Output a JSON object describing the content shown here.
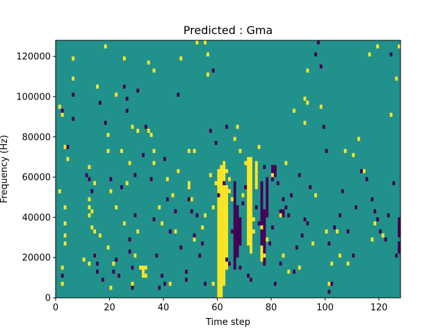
{
  "chart_data": {
    "type": "heatmap",
    "title": "Predicted : Gma",
    "xlabel": "Time step",
    "ylabel": "Frequency (Hz)",
    "xlim": [
      0,
      128
    ],
    "ylim": [
      0,
      128000
    ],
    "xticks": [
      0,
      20,
      40,
      60,
      80,
      100,
      120
    ],
    "yticks": [
      0,
      20000,
      40000,
      60000,
      80000,
      100000,
      120000
    ],
    "xtick_labels": [
      "0",
      "20",
      "40",
      "60",
      "80",
      "100",
      "120"
    ],
    "ytick_labels": [
      "0",
      "20000",
      "40000",
      "60000",
      "80000",
      "100000",
      "120000"
    ],
    "grid": false,
    "colormap": "viridis",
    "colors": {
      "background": "#21918c",
      "high": "#fde725",
      "low": "#440154"
    },
    "cell_height_hz": 2000,
    "cells_high": [
      [
        1,
        94000
      ],
      [
        2,
        90000
      ],
      [
        3,
        74000
      ],
      [
        4,
        68000
      ],
      [
        1,
        52000
      ],
      [
        3,
        44000
      ],
      [
        3,
        36000
      ],
      [
        3,
        30000
      ],
      [
        3,
        26000
      ],
      [
        2,
        14000
      ],
      [
        2,
        6000
      ],
      [
        6,
        118000
      ],
      [
        6,
        108000
      ],
      [
        10,
        18000
      ],
      [
        12,
        16000
      ],
      [
        12,
        40000
      ],
      [
        12,
        44000
      ],
      [
        12,
        48000
      ],
      [
        12,
        64000
      ],
      [
        13,
        42000
      ],
      [
        13,
        34000
      ],
      [
        14,
        20000
      ],
      [
        14,
        32000
      ],
      [
        14,
        56000
      ],
      [
        15,
        104000
      ],
      [
        16,
        30000
      ],
      [
        18,
        124000
      ],
      [
        19,
        24000
      ],
      [
        19,
        80000
      ],
      [
        19,
        72000
      ],
      [
        20,
        52000
      ],
      [
        20,
        4000
      ],
      [
        21,
        16000
      ],
      [
        22,
        44000
      ],
      [
        22,
        100000
      ],
      [
        24,
        72000
      ],
      [
        25,
        118000
      ],
      [
        25,
        36000
      ],
      [
        26,
        56000
      ],
      [
        27,
        66000
      ],
      [
        28,
        84000
      ],
      [
        28,
        6000
      ],
      [
        29,
        20000
      ],
      [
        30,
        32000
      ],
      [
        31,
        14000
      ],
      [
        32,
        14000
      ],
      [
        32,
        12000
      ],
      [
        32,
        10000
      ],
      [
        33,
        14000
      ],
      [
        33,
        10000
      ],
      [
        30,
        82000
      ],
      [
        35,
        80000
      ],
      [
        36,
        72000
      ],
      [
        36,
        66000
      ],
      [
        34,
        116000
      ],
      [
        36,
        112000
      ],
      [
        34,
        82000
      ],
      [
        38,
        44000
      ],
      [
        39,
        36000
      ],
      [
        41,
        58000
      ],
      [
        42,
        6000
      ],
      [
        43,
        50000
      ],
      [
        44,
        32000
      ],
      [
        46,
        118000
      ],
      [
        45,
        62000
      ],
      [
        49,
        54000
      ],
      [
        49,
        72000
      ],
      [
        51,
        72000
      ],
      [
        49,
        56000
      ],
      [
        50,
        48000
      ],
      [
        51,
        28000
      ],
      [
        52,
        126000
      ],
      [
        54,
        34000
      ],
      [
        55,
        126000
      ],
      [
        56,
        120000
      ],
      [
        56,
        110000
      ],
      [
        57,
        60000
      ],
      [
        55,
        40000
      ],
      [
        58,
        6000
      ],
      [
        58,
        44000
      ],
      [
        59,
        56000
      ],
      [
        60,
        62000
      ],
      [
        61,
        52000
      ],
      [
        62,
        30000
      ],
      [
        60,
        20000
      ],
      [
        61,
        12000
      ],
      [
        61,
        44000
      ],
      [
        62,
        40000
      ],
      [
        63,
        36000
      ],
      [
        62,
        66000
      ],
      [
        63,
        62000
      ],
      [
        64,
        58000
      ],
      [
        64,
        52000
      ],
      [
        65,
        48000
      ],
      [
        66,
        78000
      ],
      [
        67,
        84000
      ],
      [
        68,
        72000
      ],
      [
        69,
        50000
      ],
      [
        70,
        66000
      ],
      [
        71,
        64000
      ],
      [
        72,
        62000
      ],
      [
        71,
        58000
      ],
      [
        72,
        40000
      ],
      [
        73,
        38000
      ],
      [
        73,
        32000
      ],
      [
        74,
        56000
      ],
      [
        75,
        74000
      ],
      [
        76,
        34000
      ],
      [
        77,
        20000
      ],
      [
        78,
        28000
      ],
      [
        80,
        60000
      ],
      [
        83,
        40000
      ],
      [
        84,
        20000
      ],
      [
        85,
        66000
      ],
      [
        86,
        12000
      ],
      [
        88,
        92000
      ],
      [
        90,
        14000
      ],
      [
        92,
        98000
      ],
      [
        93,
        96000
      ],
      [
        92,
        86000
      ],
      [
        95,
        26000
      ],
      [
        96,
        50000
      ],
      [
        98,
        94000
      ],
      [
        100,
        32000
      ],
      [
        105,
        20000
      ],
      [
        107,
        72000
      ],
      [
        108,
        16000
      ],
      [
        110,
        70000
      ],
      [
        112,
        78000
      ],
      [
        114,
        62000
      ],
      [
        116,
        120000
      ],
      [
        117,
        28000
      ],
      [
        118,
        36000
      ],
      [
        119,
        124000
      ],
      [
        121,
        30000
      ],
      [
        124,
        90000
      ],
      [
        126,
        108000
      ],
      [
        127,
        124000
      ],
      [
        101,
        6000
      ],
      [
        104,
        32000
      ],
      [
        102,
        16000
      ],
      [
        93,
        112000
      ]
    ],
    "cells_low": [
      [
        2,
        92000
      ],
      [
        2,
        10000
      ],
      [
        4,
        74000
      ],
      [
        6,
        88000
      ],
      [
        6,
        100000
      ],
      [
        11,
        60000
      ],
      [
        12,
        58000
      ],
      [
        13,
        52000
      ],
      [
        14,
        20000
      ],
      [
        15,
        16000
      ],
      [
        15,
        12000
      ],
      [
        16,
        96000
      ],
      [
        17,
        8000
      ],
      [
        18,
        86000
      ],
      [
        20,
        58000
      ],
      [
        21,
        12000
      ],
      [
        22,
        18000
      ],
      [
        23,
        10000
      ],
      [
        24,
        54000
      ],
      [
        25,
        104000
      ],
      [
        26,
        92000
      ],
      [
        27,
        28000
      ],
      [
        28,
        14000
      ],
      [
        28,
        4000
      ],
      [
        29,
        60000
      ],
      [
        32,
        70000
      ],
      [
        35,
        58000
      ],
      [
        36,
        38000
      ],
      [
        37,
        20000
      ],
      [
        38,
        4000
      ],
      [
        39,
        10000
      ],
      [
        40,
        6000
      ],
      [
        42,
        32000
      ],
      [
        44,
        42000
      ],
      [
        46,
        24000
      ],
      [
        48,
        12000
      ],
      [
        48,
        8000
      ],
      [
        49,
        48000
      ],
      [
        50,
        42000
      ],
      [
        51,
        30000
      ],
      [
        52,
        40000
      ],
      [
        53,
        20000
      ],
      [
        54,
        26000
      ],
      [
        55,
        6000
      ],
      [
        57,
        82000
      ],
      [
        58,
        112000
      ],
      [
        59,
        76000
      ],
      [
        60,
        50000
      ],
      [
        62,
        56000
      ],
      [
        63,
        84000
      ],
      [
        63,
        18000
      ],
      [
        64,
        16000
      ],
      [
        65,
        32000
      ],
      [
        66,
        28000
      ],
      [
        67,
        20000
      ],
      [
        68,
        14000
      ],
      [
        69,
        46000
      ],
      [
        70,
        54000
      ],
      [
        71,
        10000
      ],
      [
        72,
        8000
      ],
      [
        74,
        44000
      ],
      [
        75,
        36000
      ],
      [
        76,
        48000
      ],
      [
        77,
        64000
      ],
      [
        78,
        52000
      ],
      [
        79,
        26000
      ],
      [
        80,
        34000
      ],
      [
        81,
        6000
      ],
      [
        82,
        56000
      ],
      [
        83,
        16000
      ],
      [
        84,
        48000
      ],
      [
        85,
        44000
      ],
      [
        86,
        40000
      ],
      [
        87,
        50000
      ],
      [
        88,
        12000
      ],
      [
        89,
        24000
      ],
      [
        90,
        60000
      ],
      [
        91,
        30000
      ],
      [
        92,
        38000
      ],
      [
        93,
        36000
      ],
      [
        94,
        54000
      ],
      [
        96,
        120000
      ],
      [
        97,
        126000
      ],
      [
        98,
        114000
      ],
      [
        99,
        84000
      ],
      [
        100,
        72000
      ],
      [
        101,
        26000
      ],
      [
        103,
        34000
      ],
      [
        105,
        40000
      ],
      [
        106,
        52000
      ],
      [
        108,
        32000
      ],
      [
        110,
        20000
      ],
      [
        111,
        44000
      ],
      [
        113,
        62000
      ],
      [
        115,
        58000
      ],
      [
        117,
        48000
      ],
      [
        118,
        42000
      ],
      [
        119,
        38000
      ],
      [
        120,
        32000
      ],
      [
        122,
        28000
      ],
      [
        123,
        40000
      ],
      [
        124,
        120000
      ],
      [
        125,
        56000
      ],
      [
        126,
        20000
      ],
      [
        127,
        32000
      ],
      [
        127,
        26000
      ],
      [
        101,
        2000
      ],
      [
        102,
        6000
      ],
      [
        26,
        98000
      ],
      [
        30,
        102000
      ],
      [
        33,
        84000
      ],
      [
        40,
        68000
      ],
      [
        45,
        100000
      ],
      [
        41,
        48000
      ],
      [
        29,
        40000
      ],
      [
        27,
        22000
      ]
    ],
    "bands_high": [
      {
        "x": 60,
        "y0": 0,
        "y1": 62000
      },
      {
        "x": 61,
        "y0": 0,
        "y1": 66000
      },
      {
        "x": 62,
        "y0": 6000,
        "y1": 66000
      },
      {
        "x": 63,
        "y0": 14000,
        "y1": 56000
      },
      {
        "x": 71,
        "y0": 26000,
        "y1": 70000
      },
      {
        "x": 72,
        "y0": 22000,
        "y1": 70000
      },
      {
        "x": 74,
        "y0": 54000,
        "y1": 68000
      },
      {
        "x": 76,
        "y0": 18000,
        "y1": 34000
      }
    ],
    "bands_low": [
      {
        "x": 66,
        "y0": 14000,
        "y1": 58000
      },
      {
        "x": 67,
        "y0": 22000,
        "y1": 46000
      },
      {
        "x": 68,
        "y0": 26000,
        "y1": 40000
      },
      {
        "x": 76,
        "y0": 26000,
        "y1": 58000
      },
      {
        "x": 77,
        "y0": 16000,
        "y1": 44000
      },
      {
        "x": 78,
        "y0": 40000,
        "y1": 60000
      },
      {
        "x": 83,
        "y0": 40000,
        "y1": 44000
      },
      {
        "x": 84,
        "y0": 40000,
        "y1": 44000
      },
      {
        "x": 127,
        "y0": 30000,
        "y1": 40000
      },
      {
        "x": 127,
        "y0": 22000,
        "y1": 26000
      },
      {
        "x": 80,
        "y0": 58000,
        "y1": 66000
      },
      {
        "x": 81,
        "y0": 60000,
        "y1": 66000
      }
    ]
  }
}
